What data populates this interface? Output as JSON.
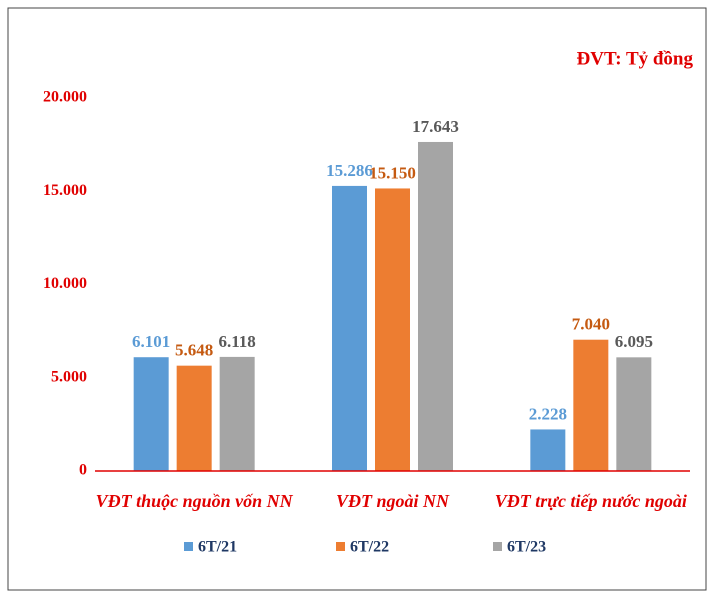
{
  "chart_data": {
    "type": "bar",
    "unit_label": "ĐVT: Tỷ đồng",
    "categories": [
      "VĐT thuộc nguồn vốn NN",
      "VĐT ngoài NN",
      "VĐT trực tiếp nước ngoài"
    ],
    "series": [
      {
        "name": "6T/21",
        "color": "#5b9bd5",
        "label_color": "#5b9bd5",
        "values": [
          6101,
          15286,
          2228
        ],
        "value_labels": [
          "6.101",
          "15.286",
          "2.228"
        ]
      },
      {
        "name": "6T/22",
        "color": "#ed7d31",
        "label_color": "#c55a11",
        "values": [
          5648,
          15150,
          7040
        ],
        "value_labels": [
          "5.648",
          "15.150",
          "7.040"
        ]
      },
      {
        "name": "6T/23",
        "color": "#a5a5a5",
        "label_color": "#595959",
        "values": [
          6118,
          17643,
          6095
        ],
        "value_labels": [
          "6.118",
          "17.643",
          "6.095"
        ]
      }
    ],
    "ylim": [
      0,
      20000
    ],
    "yticks": [
      0,
      {
        "value": 5000,
        "label": "5.000"
      },
      {
        "value": 10000,
        "label": "10.000"
      },
      {
        "value": 15000,
        "label": "15.000"
      },
      {
        "value": 20000,
        "label": "20.000"
      }
    ],
    "grid": false,
    "legend": "bottom"
  }
}
